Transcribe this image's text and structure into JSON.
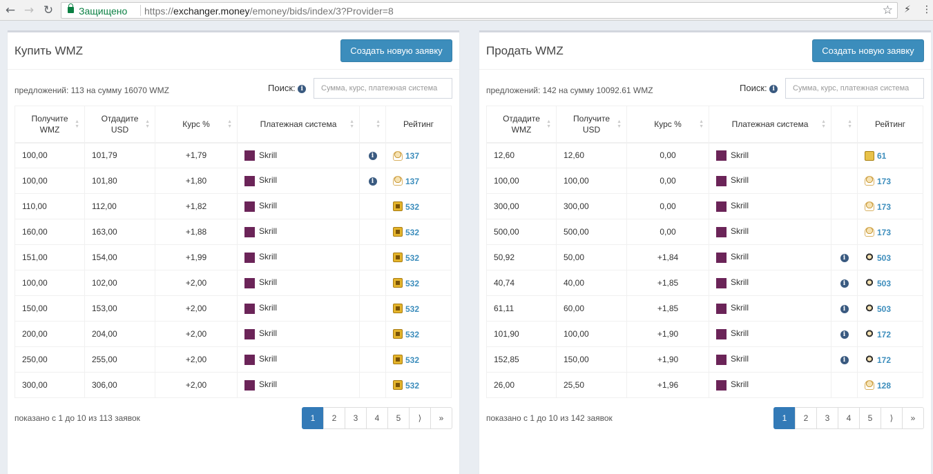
{
  "browser": {
    "secure_label": "Защищено",
    "url_scheme": "https://",
    "url_host": "exchanger.money",
    "url_path": "/emoney/bids/index/3?Provider=8"
  },
  "buy_panel": {
    "title": "Купить WMZ",
    "create_button": "Создать новую заявку",
    "summary": "предложений: 113 на сумму 16070 WMZ",
    "search_label": "Поиск:",
    "search_placeholder": "Сумма, курс, платежная система",
    "columns": [
      "Получите WMZ",
      "Отдадите USD",
      "Курс %",
      "Платежная система",
      "",
      "Рейтинг"
    ],
    "rows": [
      {
        "get": "100,00",
        "give": "101,79",
        "rate": "+1,79",
        "ps": "Skrill",
        "info": true,
        "rating": "137",
        "icon": "person"
      },
      {
        "get": "100,00",
        "give": "101,80",
        "rate": "+1,80",
        "ps": "Skrill",
        "info": true,
        "rating": "137",
        "icon": "person"
      },
      {
        "get": "110,00",
        "give": "112,00",
        "rate": "+1,82",
        "ps": "Skrill",
        "info": false,
        "rating": "532",
        "icon": "gold"
      },
      {
        "get": "160,00",
        "give": "163,00",
        "rate": "+1,88",
        "ps": "Skrill",
        "info": false,
        "rating": "532",
        "icon": "gold"
      },
      {
        "get": "151,00",
        "give": "154,00",
        "rate": "+1,99",
        "ps": "Skrill",
        "info": false,
        "rating": "532",
        "icon": "gold"
      },
      {
        "get": "100,00",
        "give": "102,00",
        "rate": "+2,00",
        "ps": "Skrill",
        "info": false,
        "rating": "532",
        "icon": "gold"
      },
      {
        "get": "150,00",
        "give": "153,00",
        "rate": "+2,00",
        "ps": "Skrill",
        "info": false,
        "rating": "532",
        "icon": "gold"
      },
      {
        "get": "200,00",
        "give": "204,00",
        "rate": "+2,00",
        "ps": "Skrill",
        "info": false,
        "rating": "532",
        "icon": "gold"
      },
      {
        "get": "250,00",
        "give": "255,00",
        "rate": "+2,00",
        "ps": "Skrill",
        "info": false,
        "rating": "532",
        "icon": "gold"
      },
      {
        "get": "300,00",
        "give": "306,00",
        "rate": "+2,00",
        "ps": "Skrill",
        "info": false,
        "rating": "532",
        "icon": "gold"
      }
    ],
    "footer": "показано с 1 до 10 из 113 заявок",
    "pages": [
      "1",
      "2",
      "3",
      "4",
      "5",
      "⟩",
      "»"
    ],
    "active_page": "1"
  },
  "sell_panel": {
    "title": "Продать WMZ",
    "create_button": "Создать новую заявку",
    "summary": "предложений: 142 на сумму 10092.61 WMZ",
    "search_label": "Поиск:",
    "search_placeholder": "Сумма, курс, платежная система",
    "columns": [
      "Отдадите WMZ",
      "Получите USD",
      "Курс %",
      "Платежная система",
      "",
      "Рейтинг"
    ],
    "rows": [
      {
        "get": "12,60",
        "give": "12,60",
        "rate": "0,00",
        "ps": "Skrill",
        "info": false,
        "rating": "61",
        "icon": "card"
      },
      {
        "get": "100,00",
        "give": "100,00",
        "rate": "0,00",
        "ps": "Skrill",
        "info": false,
        "rating": "173",
        "icon": "person"
      },
      {
        "get": "300,00",
        "give": "300,00",
        "rate": "0,00",
        "ps": "Skrill",
        "info": false,
        "rating": "173",
        "icon": "person"
      },
      {
        "get": "500,00",
        "give": "500,00",
        "rate": "0,00",
        "ps": "Skrill",
        "info": false,
        "rating": "173",
        "icon": "person"
      },
      {
        "get": "50,92",
        "give": "50,00",
        "rate": "+1,84",
        "ps": "Skrill",
        "info": true,
        "rating": "503",
        "icon": "dark"
      },
      {
        "get": "40,74",
        "give": "40,00",
        "rate": "+1,85",
        "ps": "Skrill",
        "info": true,
        "rating": "503",
        "icon": "dark"
      },
      {
        "get": "61,11",
        "give": "60,00",
        "rate": "+1,85",
        "ps": "Skrill",
        "info": true,
        "rating": "503",
        "icon": "dark"
      },
      {
        "get": "101,90",
        "give": "100,00",
        "rate": "+1,90",
        "ps": "Skrill",
        "info": true,
        "rating": "172",
        "icon": "dark"
      },
      {
        "get": "152,85",
        "give": "150,00",
        "rate": "+1,90",
        "ps": "Skrill",
        "info": true,
        "rating": "172",
        "icon": "dark"
      },
      {
        "get": "26,00",
        "give": "25,50",
        "rate": "+1,96",
        "ps": "Skrill",
        "info": false,
        "rating": "128",
        "icon": "person"
      }
    ],
    "footer": "показано с 1 до 10 из 142 заявок",
    "pages": [
      "1",
      "2",
      "3",
      "4",
      "5",
      "⟩",
      "»"
    ],
    "active_page": "1"
  }
}
